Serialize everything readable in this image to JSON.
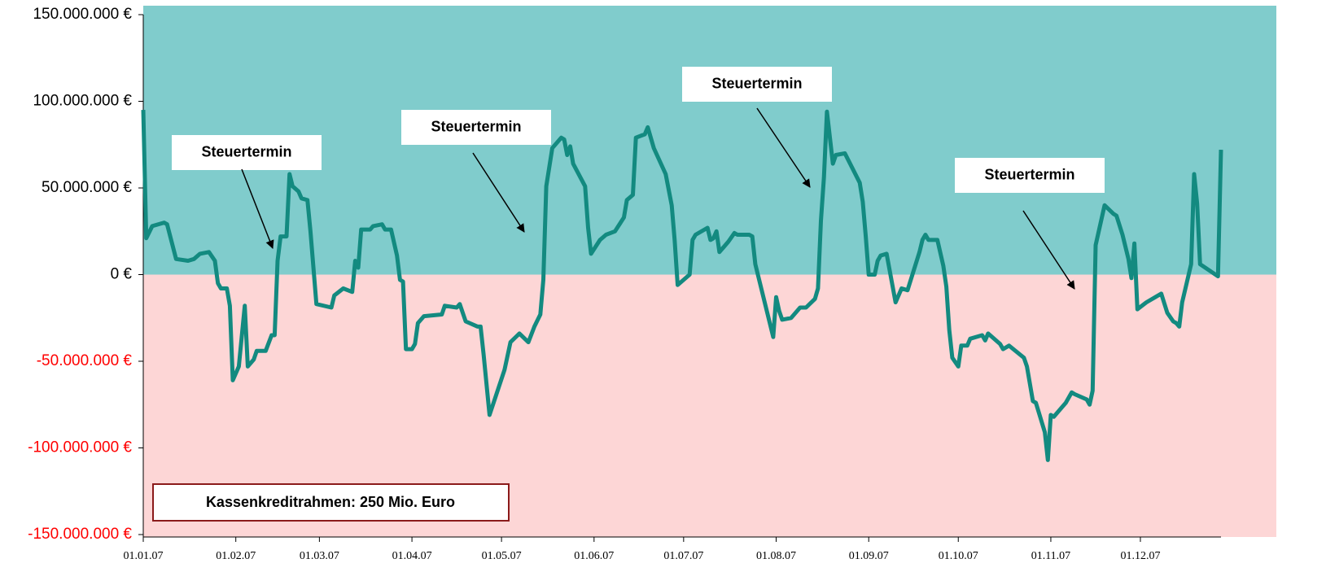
{
  "chart_data": {
    "type": "line",
    "color": "#138a80",
    "positive_color": "#80cccc",
    "negative_color": "#fdd6d6",
    "negative_tick_color": "#ff0000",
    "annotations": [
      "Steuertermin",
      "Steuertermin",
      "Steuertermin",
      "Steuertermin",
      "Kassenkreditrahmen: 250 Mio. Euro"
    ],
    "xlim": [
      "2007-01-01",
      "2007-12-28"
    ],
    "xticks": [
      {
        "value": "2007-01-01",
        "label": "01.01.07"
      },
      {
        "value": "2007-02-01",
        "label": "01.02.07"
      },
      {
        "value": "2007-03-01",
        "label": "01.03.07"
      },
      {
        "value": "2007-04-01",
        "label": "01.04.07"
      },
      {
        "value": "2007-05-01",
        "label": "01.05.07"
      },
      {
        "value": "2007-06-01",
        "label": "01.06.07"
      },
      {
        "value": "2007-07-01",
        "label": "01.07.07"
      },
      {
        "value": "2007-08-01",
        "label": "01.08.07"
      },
      {
        "value": "2007-09-01",
        "label": "01.09.07"
      },
      {
        "value": "2007-10-01",
        "label": "01.10.07"
      },
      {
        "value": "2007-11-01",
        "label": "01.11.07"
      },
      {
        "value": "2007-12-01",
        "label": "01.12.07"
      }
    ],
    "ylim": [
      -150000000,
      150000000
    ],
    "yticks": [
      {
        "value": -150000000,
        "label": "-150.000.000 €"
      },
      {
        "value": -100000000,
        "label": "-100.000.000 €"
      },
      {
        "value": -50000000,
        "label": "-50.000.000 €"
      },
      {
        "value": 0,
        "label": "0 €"
      },
      {
        "value": 50000000,
        "label": "50.000.000 €"
      },
      {
        "value": 100000000,
        "label": "100.000.000 €"
      },
      {
        "value": 150000000,
        "label": "150.000.000 €"
      }
    ],
    "x": [
      "2007-01-01",
      "2007-01-02",
      "2007-01-04",
      "2007-01-08",
      "2007-01-09",
      "2007-01-12",
      "2007-01-16",
      "2007-01-18",
      "2007-01-20",
      "2007-01-23",
      "2007-01-25",
      "2007-01-26",
      "2007-01-27",
      "2007-01-29",
      "2007-01-30",
      "2007-01-31",
      "2007-02-02",
      "2007-02-04",
      "2007-02-05",
      "2007-02-07",
      "2007-02-08",
      "2007-02-11",
      "2007-02-13",
      "2007-02-14",
      "2007-02-15",
      "2007-02-16",
      "2007-02-18",
      "2007-02-19",
      "2007-02-20",
      "2007-02-22",
      "2007-02-23",
      "2007-02-25",
      "2007-02-26",
      "2007-02-28",
      "2007-03-05",
      "2007-03-06",
      "2007-03-09",
      "2007-03-12",
      "2007-03-13",
      "2007-03-14",
      "2007-03-15",
      "2007-03-18",
      "2007-03-19",
      "2007-03-22",
      "2007-03-23",
      "2007-03-25",
      "2007-03-27",
      "2007-03-28",
      "2007-03-29",
      "2007-03-30",
      "2007-04-01",
      "2007-04-02",
      "2007-04-03",
      "2007-04-05",
      "2007-04-11",
      "2007-04-12",
      "2007-04-16",
      "2007-04-17",
      "2007-04-19",
      "2007-04-23",
      "2007-04-24",
      "2007-04-25",
      "2007-04-27",
      "2007-05-02",
      "2007-05-04",
      "2007-05-07",
      "2007-05-10",
      "2007-05-12",
      "2007-05-14",
      "2007-05-15",
      "2007-05-16",
      "2007-05-18",
      "2007-05-21",
      "2007-05-22",
      "2007-05-23",
      "2007-05-24",
      "2007-05-25",
      "2007-05-29",
      "2007-05-30",
      "2007-05-31",
      "2007-06-03",
      "2007-06-05",
      "2007-06-08",
      "2007-06-11",
      "2007-06-12",
      "2007-06-14",
      "2007-06-15",
      "2007-06-18",
      "2007-06-19",
      "2007-06-21",
      "2007-06-25",
      "2007-06-27",
      "2007-06-28",
      "2007-06-29",
      "2007-07-03",
      "2007-07-04",
      "2007-07-05",
      "2007-07-09",
      "2007-07-10",
      "2007-07-11",
      "2007-07-12",
      "2007-07-13",
      "2007-07-16",
      "2007-07-18",
      "2007-07-19",
      "2007-07-23",
      "2007-07-24",
      "2007-07-25",
      "2007-07-31",
      "2007-08-01",
      "2007-08-02",
      "2007-08-03",
      "2007-08-06",
      "2007-08-09",
      "2007-08-11",
      "2007-08-14",
      "2007-08-15",
      "2007-08-16",
      "2007-08-17",
      "2007-08-18",
      "2007-08-20",
      "2007-08-21",
      "2007-08-24",
      "2007-08-29",
      "2007-08-30",
      "2007-08-31",
      "2007-09-01",
      "2007-09-03",
      "2007-09-04",
      "2007-09-05",
      "2007-09-07",
      "2007-09-10",
      "2007-09-12",
      "2007-09-14",
      "2007-09-18",
      "2007-09-19",
      "2007-09-20",
      "2007-09-21",
      "2007-09-24",
      "2007-09-26",
      "2007-09-27",
      "2007-09-28",
      "2007-09-29",
      "2007-10-01",
      "2007-10-02",
      "2007-10-04",
      "2007-10-05",
      "2007-10-09",
      "2007-10-10",
      "2007-10-11",
      "2007-10-15",
      "2007-10-16",
      "2007-10-18",
      "2007-10-23",
      "2007-10-24",
      "2007-10-26",
      "2007-10-27",
      "2007-10-30",
      "2007-10-31",
      "2007-11-01",
      "2007-11-02",
      "2007-11-05",
      "2007-11-06",
      "2007-11-08",
      "2007-11-09",
      "2007-11-13",
      "2007-11-14",
      "2007-11-15",
      "2007-11-16",
      "2007-11-19",
      "2007-11-22",
      "2007-11-23",
      "2007-11-25",
      "2007-11-27",
      "2007-11-28",
      "2007-11-29",
      "2007-11-30",
      "2007-12-03",
      "2007-12-06",
      "2007-12-08",
      "2007-12-10",
      "2007-12-12",
      "2007-12-13",
      "2007-12-14",
      "2007-12-15",
      "2007-12-18",
      "2007-12-19",
      "2007-12-20",
      "2007-12-21",
      "2007-12-27",
      "2007-12-28"
    ],
    "values": [
      95000000,
      21000000,
      28000000,
      30000000,
      29000000,
      9000000,
      8000000,
      9000000,
      12000000,
      13000000,
      8000000,
      -5000000,
      -8000000,
      -8000000,
      -18000000,
      -61000000,
      -53000000,
      -18000000,
      -53000000,
      -49000000,
      -44000000,
      -44000000,
      -35000000,
      -35000000,
      8000000,
      22000000,
      22000000,
      58000000,
      51000000,
      48000000,
      44000000,
      43000000,
      25000000,
      -17000000,
      -19000000,
      -12000000,
      -8000000,
      -10000000,
      8000000,
      4000000,
      26000000,
      26000000,
      28000000,
      29000000,
      26000000,
      26000000,
      11000000,
      -3000000,
      -4000000,
      -43000000,
      -43000000,
      -40000000,
      -28000000,
      -24000000,
      -23000000,
      -18000000,
      -19000000,
      -17000000,
      -27000000,
      -30000000,
      -30000000,
      -46000000,
      -81000000,
      -55000000,
      -39000000,
      -34000000,
      -39000000,
      -30000000,
      -23000000,
      -3000000,
      51000000,
      73000000,
      79000000,
      78000000,
      69000000,
      74000000,
      64000000,
      51000000,
      27000000,
      12000000,
      20000000,
      23000000,
      25000000,
      33000000,
      43000000,
      46000000,
      79000000,
      81000000,
      85000000,
      73000000,
      58000000,
      40000000,
      20000000,
      -6000000,
      0,
      20000000,
      23000000,
      27000000,
      20000000,
      21000000,
      25000000,
      13000000,
      19000000,
      24000000,
      23000000,
      23000000,
      22000000,
      6000000,
      -36000000,
      -13000000,
      -21000000,
      -26000000,
      -25000000,
      -19000000,
      -19000000,
      -14000000,
      -8000000,
      31000000,
      56000000,
      94000000,
      64000000,
      69000000,
      70000000,
      53000000,
      42000000,
      22000000,
      0,
      0,
      8000000,
      11000000,
      12000000,
      -16000000,
      -8000000,
      -9000000,
      13000000,
      20000000,
      23000000,
      20000000,
      20000000,
      5000000,
      -7000000,
      -32000000,
      -48000000,
      -53000000,
      -41000000,
      -41000000,
      -37000000,
      -35000000,
      -38000000,
      -34000000,
      -40000000,
      -43000000,
      -41000000,
      -48000000,
      -53000000,
      -73000000,
      -74000000,
      -91000000,
      -107000000,
      -81000000,
      -82000000,
      -76000000,
      -74000000,
      -68000000,
      -69000000,
      -72000000,
      -75000000,
      -67000000,
      17000000,
      40000000,
      35000000,
      34000000,
      23000000,
      9000000,
      -2000000,
      18000000,
      -20000000,
      -16000000,
      -13000000,
      -11000000,
      -22000000,
      -27000000,
      -28000000,
      -30000000,
      -16000000,
      6000000,
      58000000,
      41000000,
      6000000,
      -1000000,
      72000000
    ]
  }
}
